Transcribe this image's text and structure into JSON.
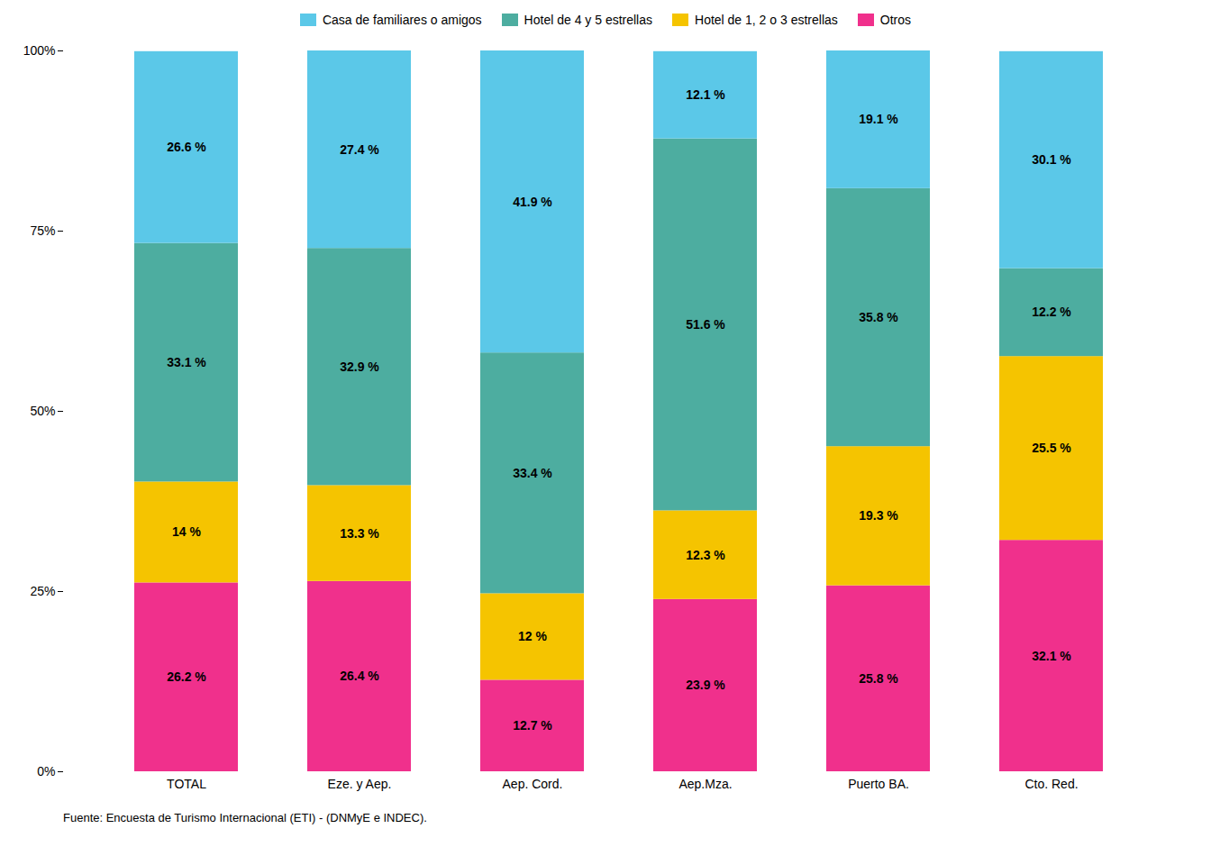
{
  "chart_data": {
    "type": "bar",
    "stacked": true,
    "data_labels": true,
    "grid": false,
    "legend": "top",
    "categories": [
      "TOTAL",
      "Eze. y Aep.",
      "Aep. Cord.",
      "Aep.Mza.",
      "Puerto BA.",
      "Cto. Red."
    ],
    "series": [
      {
        "name": "Otros",
        "color": "#F0308C",
        "values": [
          26.2,
          26.4,
          12.7,
          23.9,
          25.8,
          32.1
        ],
        "value_labels": [
          "26.2 %",
          "26.4 %",
          "12.7 %",
          "23.9 %",
          "25.8 %",
          "32.1 %"
        ]
      },
      {
        "name": "Hotel de 1, 2 o 3 estrellas",
        "color": "#F5C400",
        "values": [
          14.0,
          13.3,
          12.0,
          12.3,
          19.3,
          25.5
        ],
        "value_labels": [
          "14 %",
          "13.3 %",
          "12 %",
          "12.3 %",
          "19.3 %",
          "25.5 %"
        ]
      },
      {
        "name": "Hotel de 4 y 5 estrellas",
        "color": "#4DADA0",
        "values": [
          33.1,
          32.9,
          33.4,
          51.6,
          35.8,
          12.2
        ],
        "value_labels": [
          "33.1 %",
          "32.9 %",
          "33.4 %",
          "51.6 %",
          "35.8 %",
          "12.2 %"
        ]
      },
      {
        "name": "Casa de familiares o amigos",
        "color": "#5BC8E8",
        "values": [
          26.6,
          27.4,
          41.9,
          12.1,
          19.1,
          30.1
        ],
        "value_labels": [
          "26.6 %",
          "27.4 %",
          "41.9 %",
          "12.1 %",
          "19.1 %",
          "30.1 %"
        ]
      }
    ],
    "ylim": [
      0,
      100
    ],
    "yticks": [
      {
        "value": 0,
        "label": "0%"
      },
      {
        "value": 25,
        "label": "25%"
      },
      {
        "value": 50,
        "label": "50%"
      },
      {
        "value": 75,
        "label": "75%"
      },
      {
        "value": 100,
        "label": "100%"
      }
    ],
    "source": "Fuente: Encuesta de Turismo Internacional (ETI) - (DNMyE e INDEC)."
  }
}
